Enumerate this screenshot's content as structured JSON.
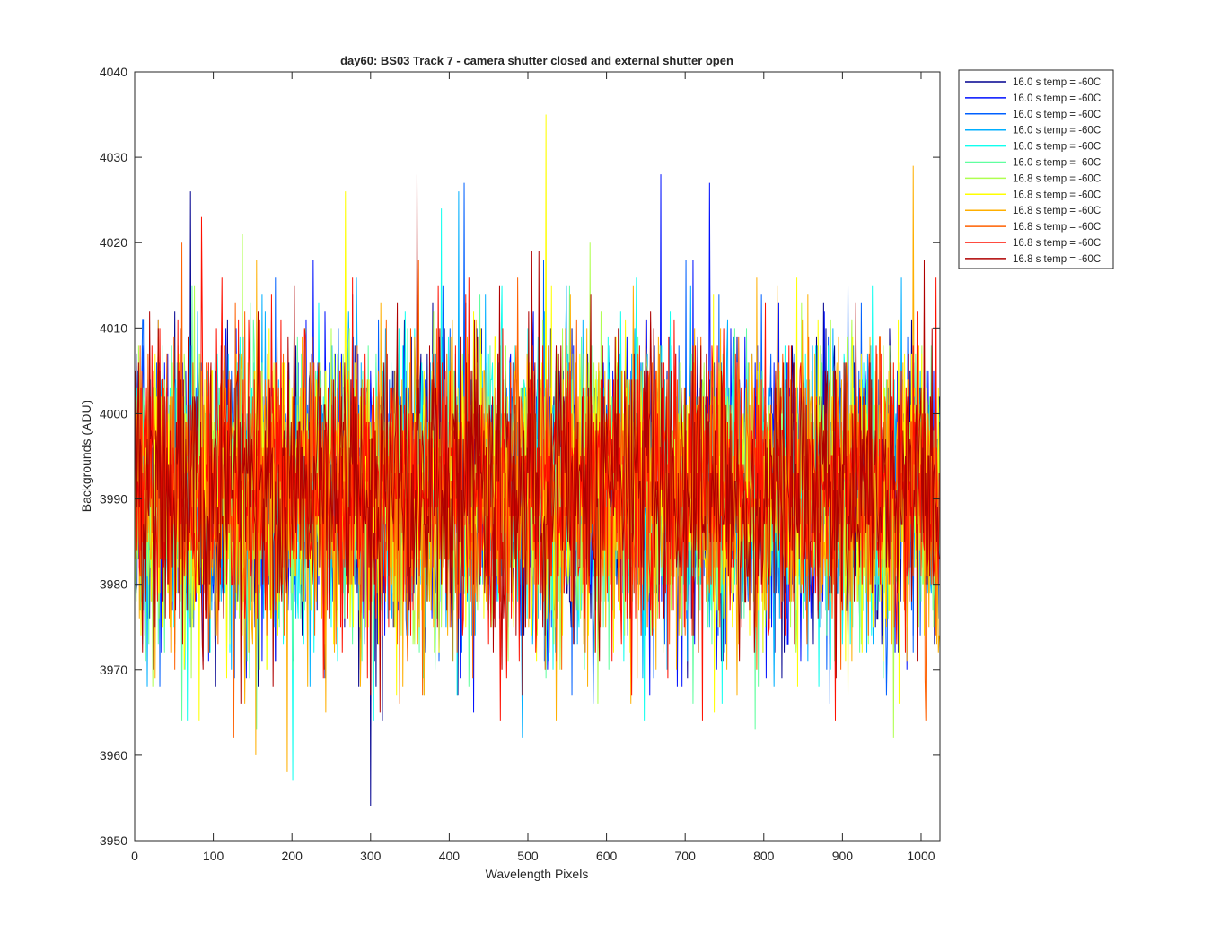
{
  "chart_data": {
    "type": "line",
    "title": "day60: BS03  Track 7 - camera shutter closed and external shutter open",
    "xlabel": "Wavelength Pixels",
    "ylabel": "Backgrounds (ADU)",
    "xlim": [
      0,
      1024
    ],
    "ylim": [
      3950,
      4040
    ],
    "xticks": [
      0,
      100,
      200,
      300,
      400,
      500,
      600,
      700,
      800,
      900,
      1000
    ],
    "yticks": [
      3950,
      3960,
      3970,
      3980,
      3990,
      4000,
      4010,
      4020,
      4030,
      4040
    ],
    "grid": false,
    "legend_position": "outside-top-right",
    "noise": {
      "mean": 3991,
      "sd": 8.5,
      "points_per_series": 1024
    },
    "series": [
      {
        "name": "16.0 s temp = -60C",
        "color": "#00008f",
        "peaks": [
          [
            71,
            4026
          ],
          [
            300,
            3954
          ]
        ]
      },
      {
        "name": "16.0 s temp = -60C",
        "color": "#0010ff",
        "peaks": [
          [
            731,
            4027
          ],
          [
            669,
            4028
          ]
        ]
      },
      {
        "name": "16.0 s temp = -60C",
        "color": "#0060ff",
        "peaks": [
          [
            419,
            4027
          ]
        ]
      },
      {
        "name": "16.0 s temp = -60C",
        "color": "#00afff",
        "peaks": [
          [
            412,
            4026
          ],
          [
            493,
            3962
          ]
        ]
      },
      {
        "name": "16.0 s temp = -60C",
        "color": "#10ffef",
        "peaks": [
          [
            201,
            3957
          ],
          [
            390,
            4024
          ]
        ]
      },
      {
        "name": "16.0 s temp = -60C",
        "color": "#60ff9f",
        "peaks": [
          [
            155,
            3963
          ],
          [
            789,
            3963
          ]
        ]
      },
      {
        "name": "16.8 s temp = -60C",
        "color": "#afff50",
        "peaks": [
          [
            137,
            4021
          ],
          [
            965,
            3962
          ]
        ]
      },
      {
        "name": "16.8 s temp = -60C",
        "color": "#ffff00",
        "peaks": [
          [
            523,
            4035
          ],
          [
            268,
            4026
          ]
        ]
      },
      {
        "name": "16.8 s temp = -60C",
        "color": "#ffaf00",
        "peaks": [
          [
            990,
            4029
          ],
          [
            194,
            3958
          ],
          [
            154,
            3960
          ]
        ]
      },
      {
        "name": "16.8 s temp = -60C",
        "color": "#ff6000",
        "peaks": [
          [
            60,
            4020
          ],
          [
            126,
            3962
          ]
        ]
      },
      {
        "name": "16.8 s temp = -60C",
        "color": "#ff1000",
        "peaks": [
          [
            85,
            4023
          ],
          [
            891,
            3964
          ]
        ]
      },
      {
        "name": "16.8 s temp = -60C",
        "color": "#af0000",
        "peaks": [
          [
            359,
            4028
          ],
          [
            300,
            3967
          ]
        ]
      }
    ]
  }
}
